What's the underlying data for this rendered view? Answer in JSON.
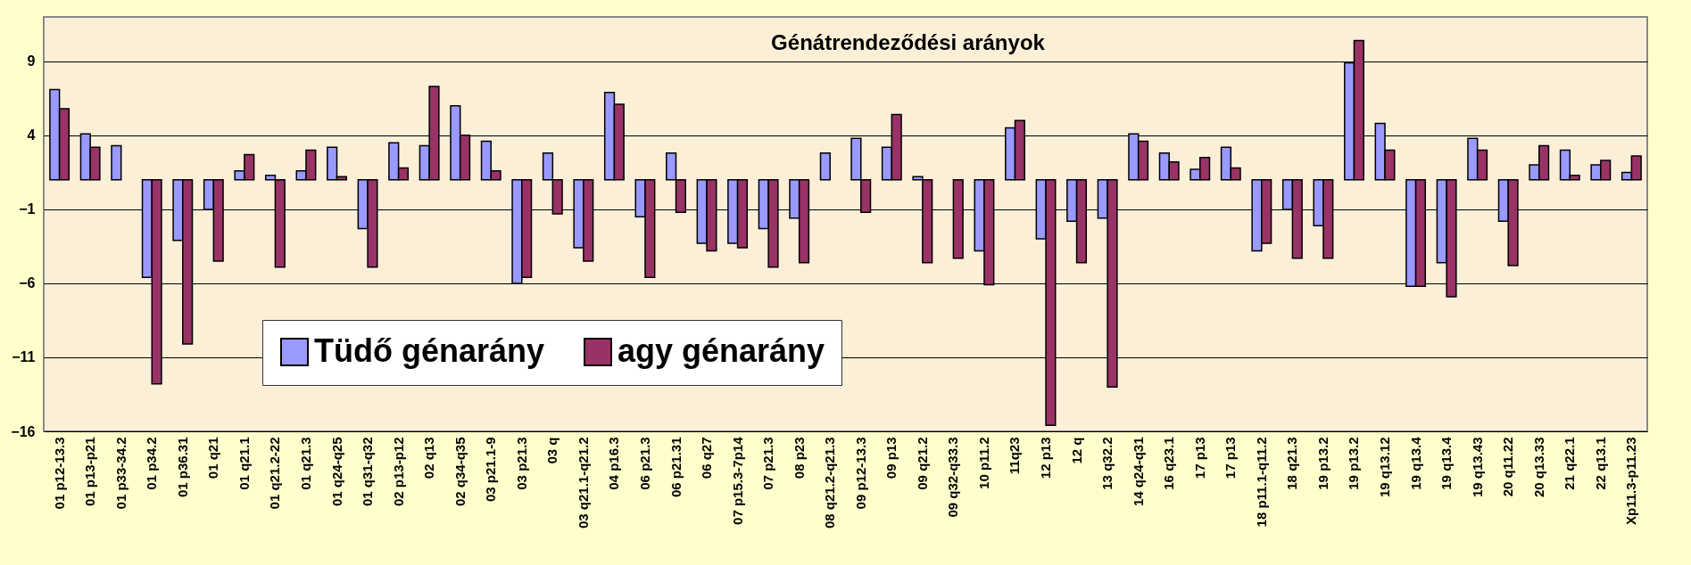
{
  "chart_data": {
    "type": "bar",
    "title": "Génátrendeződési arányok",
    "categories": [
      "01 p12-13.3",
      "01 p13-p21",
      "01 p33-34.2",
      "01 p34.2",
      "01 p36.31",
      "01 q21",
      "01 q21.1",
      "01 q21.2-22",
      "01 q21.3",
      "01 q24-q25",
      "01 q31-q32",
      "02 p13-p12",
      "02 q13",
      "02 q34-q35",
      "03 p21.1-9",
      "03 p21.3",
      "03 q",
      "03 q21.1-q21.2",
      "04 p16.3",
      "06 p21.3",
      "06 p21.31",
      "06 q27",
      "07 p15.3-7p14",
      "07 p21.3",
      "08 p23",
      "08 q21.2-q21.3",
      "09 p12-13.3",
      "09 p13",
      "09 q21.2",
      "09 q32-q33.3",
      "10 p11.2",
      "11q23",
      "12 p13",
      "12 q",
      "13 q32.2",
      "14 q24-q31",
      "16 q23.1",
      "17 p13",
      "17 p13",
      "18 p11.1-q11.2",
      "18 q21.3",
      "19 p13.2",
      "19 p13.2",
      "19 q13.12",
      "19 q13.4",
      "19 q13.4",
      "19 q13.43",
      "20 q11.22",
      "20 q13.33",
      "21 q22.1",
      "22 q13.1",
      "Xp11.3-p11.23"
    ],
    "series": [
      {
        "name": "Tüdő génarány",
        "color": "#9999ff",
        "base": [
          1,
          1,
          1,
          1,
          1,
          1,
          1,
          1,
          1,
          1,
          1,
          1,
          1,
          1,
          1,
          1,
          1,
          1,
          1,
          1,
          1,
          1,
          1,
          1,
          1,
          1,
          1,
          1,
          1,
          null,
          1,
          1,
          1,
          1,
          1,
          1,
          1,
          1,
          1,
          1,
          1,
          1,
          1,
          1,
          1,
          1,
          1,
          1,
          1,
          1,
          1,
          1
        ],
        "values": [
          6.1,
          3.1,
          2.3,
          -6.6,
          -4.1,
          -2.0,
          0.6,
          0.3,
          0.6,
          2.2,
          -3.3,
          2.5,
          2.3,
          5.0,
          2.6,
          -7.0,
          1.8,
          -4.6,
          5.9,
          -2.5,
          1.8,
          -4.3,
          -4.3,
          -3.3,
          -2.6,
          1.8,
          2.8,
          2.2,
          0.2,
          null,
          -4.8,
          3.5,
          -4.0,
          -2.8,
          -2.6,
          3.1,
          1.8,
          0.7,
          2.2,
          -4.8,
          -2.0,
          -3.1,
          7.9,
          3.8,
          -7.2,
          -5.6,
          2.8,
          -2.8,
          1.0,
          2.0,
          1.0,
          0.5
        ]
      },
      {
        "name": "agy génarány",
        "color": "#993366",
        "base": [
          1,
          1,
          null,
          1,
          1,
          1,
          1,
          1,
          1,
          1,
          1,
          1,
          1,
          1,
          1,
          1,
          1,
          1,
          1,
          1,
          1,
          1,
          1,
          1,
          1,
          null,
          1,
          1,
          1,
          1,
          1,
          1,
          1,
          1,
          1,
          1,
          1,
          1,
          1,
          1,
          1,
          1,
          1,
          1,
          1,
          1,
          1,
          1,
          1,
          1,
          1,
          1
        ],
        "values": [
          4.8,
          2.2,
          null,
          -13.8,
          -11.1,
          -5.5,
          1.7,
          -5.9,
          2.0,
          0.2,
          -5.9,
          0.8,
          6.3,
          3.0,
          0.6,
          -6.6,
          -2.3,
          -5.5,
          5.1,
          -6.6,
          -2.2,
          -4.8,
          -4.6,
          -5.9,
          -5.6,
          null,
          -2.2,
          4.4,
          -5.6,
          -5.3,
          -7.1,
          4.0,
          -16.6,
          -5.6,
          -14.0,
          2.6,
          1.2,
          1.5,
          0.8,
          -4.3,
          -5.3,
          -5.3,
          9.4,
          2.0,
          -7.2,
          -7.9,
          2.0,
          -5.8,
          2.3,
          0.3,
          1.3,
          1.6
        ]
      }
    ],
    "ylim": [
      -16,
      12
    ],
    "yticks": [
      9,
      4,
      -1,
      -6,
      -11,
      -16
    ],
    "grid": "y",
    "legend": "bottom left"
  }
}
